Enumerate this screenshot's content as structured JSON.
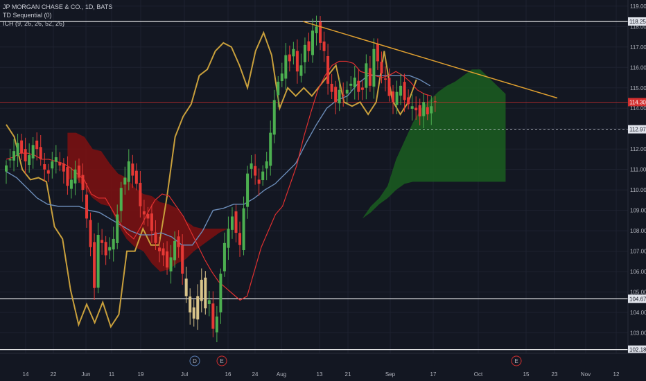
{
  "legend": {
    "symbol": "JP MORGAN CHASE & CO., 1D, BATS",
    "indicator1": "TD Sequential (0)",
    "indicator2": "ICH (9, 26, 26, 52, 26)"
  },
  "colors": {
    "background": "#131722",
    "grid": "#1e2230",
    "axis_text": "#b2b5be",
    "up": "#4caf50",
    "down": "#e53935",
    "highlight": "#d9c48a",
    "tenkan": "#e03030",
    "kijun": "#6b8cb8",
    "chikou": "#c9a03c",
    "cloud_bull": "#1b5e20",
    "cloud_bear": "#7f1111",
    "resistance_line": "#ffffff",
    "trendline": "#e0a030",
    "price_tag": "#d32f2f"
  },
  "chart_data": {
    "type": "candlestick",
    "ylim": [
      102.0,
      119.3
    ],
    "y_ticks": [
      103.0,
      104.0,
      105.0,
      106.0,
      107.0,
      108.0,
      109.0,
      110.0,
      111.0,
      112.0,
      113.0,
      114.0,
      115.0,
      116.0,
      117.0,
      118.0,
      119.0
    ],
    "x_tick_labels": [
      "14",
      "22",
      "Jun",
      "11",
      "19",
      "Jul",
      "16",
      "24",
      "Aug",
      "13",
      "21",
      "Sep",
      "17",
      "Oct",
      "15",
      "23",
      "Nov",
      "12"
    ],
    "price_labels": [
      {
        "value": 118.25,
        "text": "118.25",
        "style": "white"
      },
      {
        "value": 114.3,
        "text": "114.30",
        "style": "red"
      },
      {
        "value": 112.97,
        "text": "112.97",
        "style": "white"
      },
      {
        "value": 104.67,
        "text": "104.67",
        "style": "white"
      },
      {
        "value": 102.18,
        "text": "102.18",
        "style": "white"
      }
    ],
    "horizontal_lines": [
      118.25,
      104.67,
      102.18
    ],
    "current_price": 114.3,
    "dashed_level": 112.97,
    "trendline": {
      "from": [
        "Aug 7",
        118.25
      ],
      "to": [
        "Sep 24",
        114.5
      ]
    },
    "event_markers": [
      {
        "label": "D",
        "date": "Jul 6",
        "color": "#5b7fb5"
      },
      {
        "label": "E",
        "date": "Jul 13",
        "color": "#d32f2f"
      },
      {
        "label": "E",
        "date": "Oct 12",
        "color": "#d32f2f"
      }
    ],
    "candles_close": [
      111.2,
      111.5,
      111.9,
      112.3,
      111.8,
      111.4,
      111.7,
      112.2,
      112.0,
      111.5,
      111.0,
      110.8,
      111.4,
      111.6,
      111.2,
      110.9,
      110.2,
      110.5,
      111.0,
      110.6,
      110.0,
      108.6,
      107.2,
      105.2,
      107.8,
      107.4,
      106.8,
      107.2,
      107.6,
      108.8,
      110.1,
      110.6,
      111.4,
      110.7,
      110.3,
      109.2,
      108.8,
      108.6,
      108.0,
      107.4,
      107.0,
      106.8,
      106.2,
      106.7,
      107.5,
      107.2,
      105.9,
      104.8,
      104.0,
      103.7,
      104.8,
      105.6,
      104.2,
      104.6,
      103.2,
      103.8,
      105.9,
      107.4,
      108.1,
      108.7,
      107.9,
      107.3,
      109.1,
      110.8,
      111.3,
      110.7,
      110.3,
      110.9,
      111.4,
      112.8,
      114.4,
      115.3,
      115.7,
      116.6,
      116.3,
      116.9,
      115.8,
      116.1,
      117.1,
      116.8,
      117.8,
      118.0,
      117.2,
      116.8,
      115.2,
      114.8,
      114.3,
      114.9,
      114.6,
      114.9,
      115.2,
      115.5,
      114.8,
      114.9,
      116.2,
      115.1,
      116.9,
      116.3,
      115.7,
      115.4,
      114.6,
      114.3,
      114.8,
      115.1,
      114.4,
      114.2,
      114.1,
      113.9,
      113.6,
      114.3,
      113.7,
      114.1,
      114.3
    ],
    "ichimoku": {
      "tenkan_sen": [
        111.5,
        111.6,
        111.8,
        111.8,
        111.7,
        111.5,
        111.5,
        111.4,
        111.3,
        111.1,
        110.8,
        110.5,
        109.8,
        109.6,
        109.6,
        109.0,
        108.4,
        107.9,
        107.6,
        108.2,
        108.9,
        109.5,
        109.8,
        109.7,
        109.2,
        108.7,
        108.0,
        107.3,
        106.6,
        106.0,
        105.5,
        105.2,
        104.9,
        104.6,
        104.8,
        106.0,
        107.2,
        108.0,
        108.8,
        109.2,
        110.2,
        111.2,
        112.6,
        113.8,
        114.9,
        115.6,
        116.1,
        116.3,
        116.3,
        116.2,
        115.8,
        115.7,
        115.6,
        115.5,
        115.6,
        115.8,
        115.6,
        115.3,
        114.9,
        114.7,
        114.6
      ],
      "kijun_sen": [
        110.9,
        110.6,
        110.1,
        109.6,
        109.3,
        109.2,
        109.2,
        109.2,
        109.0,
        108.9,
        108.6,
        108.3,
        108.0,
        107.8,
        107.8,
        107.9,
        107.7,
        107.3,
        107.3,
        108.0,
        109.0,
        109.1,
        109.3,
        109.3,
        109.6,
        110.0,
        110.3,
        110.8,
        111.3,
        112.3,
        113.2,
        114.0,
        114.4,
        114.6,
        115.2,
        115.6,
        115.6,
        115.6,
        115.6,
        115.6,
        115.4,
        115.1
      ],
      "cloud_bear": {
        "top": [
          112.8,
          112.8,
          112.6,
          112.0,
          111.9,
          111.3,
          110.8,
          110.6,
          110.1,
          109.8,
          109.7,
          109.4,
          109.3,
          109.1,
          108.5,
          108.2,
          108.1,
          108.1,
          108.1,
          108.1
        ],
        "bottom": [
          110.5,
          110.6,
          110.1,
          109.6,
          109.3,
          109.2,
          108.3,
          107.6,
          107.2,
          107.0,
          106.4,
          106.0,
          106.1,
          106.4,
          106.6,
          107.0,
          107.3,
          107.6,
          107.9,
          108.1
        ]
      },
      "cloud_bull": {
        "top": [
          108.6,
          109.2,
          109.6,
          110.2,
          111.5,
          112.4,
          113.3,
          114.0,
          114.4,
          114.8,
          115.1,
          115.3,
          115.6,
          115.9,
          115.9,
          115.5,
          115.1,
          114.7
        ],
        "bottom": [
          108.6,
          108.9,
          109.3,
          109.6,
          110.0,
          110.3,
          110.4,
          110.4,
          110.4,
          110.4,
          110.4,
          110.4,
          110.4,
          110.4,
          110.4,
          110.4,
          110.4,
          110.4
        ]
      }
    },
    "chikou_span": [
      113.2,
      112.6,
      111.0,
      110.5,
      110.6,
      110.4,
      108.2,
      107.6,
      105.1,
      103.4,
      104.4,
      103.5,
      104.5,
      103.3,
      103.9,
      107.0,
      107.0,
      108.1,
      107.3,
      107.3,
      109.7,
      112.6,
      113.6,
      114.2,
      115.6,
      115.9,
      116.8,
      117.2,
      117.0,
      116.1,
      115.0,
      116.8,
      117.7,
      116.6,
      114.0,
      115.0,
      114.6,
      115.0,
      114.6,
      115.1,
      115.6,
      116.1,
      114.3,
      114.1,
      114.3,
      113.7,
      114.3,
      116.8,
      114.4,
      113.7,
      114.3,
      115.4
    ]
  }
}
